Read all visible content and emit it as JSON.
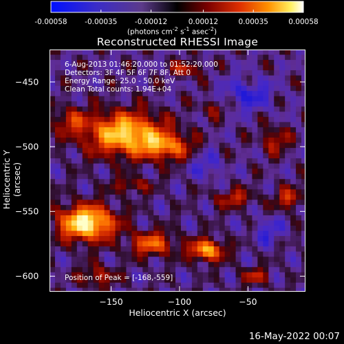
{
  "chart_data": {
    "type": "heatmap",
    "title": "Reconstructed RHESSI Image",
    "xlabel": "Heliocentric X (arcsec)",
    "ylabel": "Heliocentric Y (arcsec)",
    "xlim": [
      -195,
      -8
    ],
    "ylim": [
      -612,
      -425
    ],
    "x_ticks": [
      -150,
      -100,
      -50
    ],
    "y_ticks": [
      -450,
      -500,
      -550,
      -600
    ],
    "colorbar": {
      "ticks": [
        "-0.00058",
        "-0.00035",
        "-0.00012",
        "0.00012",
        "0.00035",
        "0.00058"
      ],
      "range": [
        -0.00058,
        0.00058
      ],
      "units_text": "(photons cm",
      "units_exp1": "-2",
      "units_mid": " s",
      "units_exp2": "-1",
      "units_end": " asec",
      "units_exp3": "-2",
      "units_close": ")"
    },
    "annotations": [
      "6-Aug-2013 01:46:20.000 to 01:52:20.000",
      "Detectors: 3F 4F 5F 6F 7F 8F, Att 0",
      "Energy Range: 25.0 - 50.0 keV",
      "Clean    Total counts: 1.94E+04"
    ],
    "peak_label": "Position of Peak = [-168,-559]",
    "peak_xy": [
      -168,
      -559
    ]
  },
  "footer": {
    "timestamp": "16-May-2022 00:07"
  },
  "colors": {
    "background": "#000000",
    "text": "#ffffff"
  }
}
